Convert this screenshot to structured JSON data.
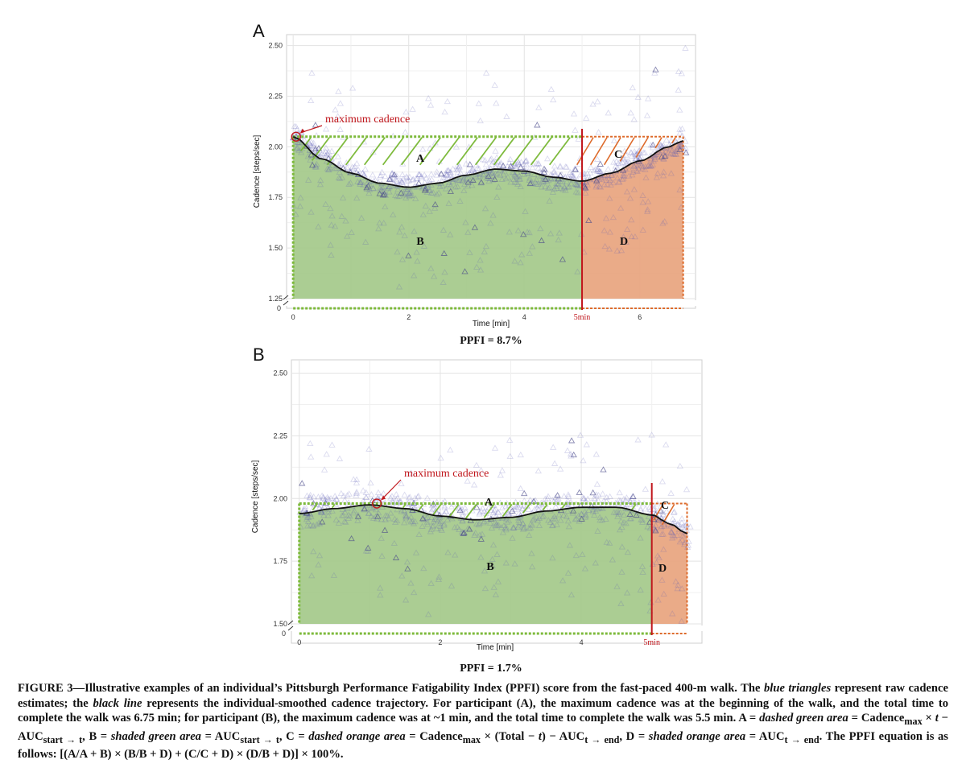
{
  "panels": [
    {
      "id": "A",
      "letter": "A",
      "y_axis_label": "Cadence [steps/sec]",
      "x_axis_label": "Time [min]",
      "y_ticks": [
        "2.50",
        "2.25",
        "2.00",
        "1.75",
        "1.50",
        "1.25"
      ],
      "y_tick_values": [
        2.5,
        2.25,
        2.0,
        1.75,
        1.5,
        1.25
      ],
      "y_zero_label": "0",
      "x_ticks": [
        "0",
        "2",
        "4",
        "6"
      ],
      "x_tick_values": [
        0,
        2,
        4,
        6
      ],
      "split_label": "5min",
      "annotation": "maximum cadence",
      "region_labels": [
        "A",
        "B",
        "C",
        "D"
      ],
      "ppfi": "PPFI = 8.7%"
    },
    {
      "id": "B",
      "letter": "B",
      "y_axis_label": "Cadence [steps/sec]",
      "x_axis_label": "Time [min]",
      "y_ticks": [
        "2.50",
        "2.25",
        "2.00",
        "1.75",
        "1.50"
      ],
      "y_tick_values": [
        2.5,
        2.25,
        2.0,
        1.75,
        1.5
      ],
      "y_zero_label": "0",
      "x_ticks": [
        "0",
        "2",
        "4"
      ],
      "x_tick_values": [
        0,
        2,
        4
      ],
      "split_label": "5min",
      "annotation": "maximum cadence",
      "region_labels": [
        "A",
        "B",
        "C",
        "D"
      ],
      "ppfi": "PPFI = 1.7%"
    }
  ],
  "chart_data": [
    {
      "type": "scatter",
      "panel": "A",
      "xlabel": "Time [min]",
      "ylabel": "Cadence [steps/sec]",
      "xlim": [
        -0.1,
        6.95
      ],
      "ylim": [
        1.25,
        2.55
      ],
      "split_time": 5.0,
      "total_time": 6.75,
      "max_cadence": 2.05,
      "max_cadence_time": 0.05,
      "smoothed_cadence": {
        "x": [
          0,
          0.5,
          1.0,
          1.5,
          2.0,
          2.5,
          3.0,
          3.5,
          4.0,
          4.5,
          5.0,
          5.5,
          6.0,
          6.5,
          6.75
        ],
        "y": [
          2.05,
          1.94,
          1.87,
          1.82,
          1.8,
          1.82,
          1.86,
          1.89,
          1.88,
          1.85,
          1.83,
          1.87,
          1.93,
          2.0,
          2.03
        ]
      },
      "series": [
        {
          "name": "blue triangles",
          "marker": "triangle",
          "color": "#5a5ab4"
        },
        {
          "name": "black line",
          "color": "#111111"
        }
      ],
      "colors": {
        "green_fill": "#a4c98a",
        "orange_fill": "#e8a47e",
        "green_dash": "#7dba3b",
        "orange_dash": "#dd6a2a",
        "split_line": "#c0161c"
      },
      "grid": true
    },
    {
      "type": "scatter",
      "panel": "B",
      "xlabel": "Time [min]",
      "ylabel": "Cadence [steps/sec]",
      "xlim": [
        -0.1,
        5.7
      ],
      "ylim": [
        1.5,
        2.55
      ],
      "split_time": 5.0,
      "total_time": 5.5,
      "max_cadence": 1.98,
      "max_cadence_time": 1.1,
      "smoothed_cadence": {
        "x": [
          0,
          0.5,
          1.0,
          1.5,
          2.0,
          2.5,
          3.0,
          3.5,
          4.0,
          4.5,
          5.0,
          5.25,
          5.5
        ],
        "y": [
          1.94,
          1.96,
          1.975,
          1.96,
          1.93,
          1.915,
          1.925,
          1.95,
          1.965,
          1.965,
          1.935,
          1.9,
          1.86
        ]
      },
      "series": [
        {
          "name": "blue triangles",
          "marker": "triangle",
          "color": "#5a5ab4"
        },
        {
          "name": "black line",
          "color": "#111111"
        }
      ],
      "colors": {
        "green_fill": "#a4c98a",
        "orange_fill": "#e8a47e",
        "green_dash": "#7dba3b",
        "orange_dash": "#dd6a2a",
        "split_line": "#c0161c"
      },
      "grid": true
    }
  ],
  "caption": {
    "fig_label": "FIGURE 3",
    "s1": "—Illustrative examples of an individual’s Pittsburgh Performance Fatigability Index (PPFI) score from the fast-paced 400-m walk. The ",
    "i1": "blue triangles",
    "s2": " represent raw cadence estimates; the ",
    "i2": "black line",
    "s3": " represents the individual-smoothed cadence trajectory. For participant (A), the maximum cadence was at the beginning of the walk, and the total time to complete the walk was 6.75 min; for participant (B), the maximum cadence was at ~1 min, and the total time to complete the walk was 5.5 min. A = ",
    "i3": "dashed green area",
    "s4": " = Cadence",
    "sub_max": "max",
    "s5": " × ",
    "i_t": "t",
    "s6": " − AUC",
    "sub_start_t": "start → t",
    "s7": ", B = ",
    "i4": "shaded green area",
    "s8": " = AUC",
    "sub_start_t2": "start → t",
    "s9": ", C = ",
    "i5": "dashed orange area",
    "s10": " = Cadence",
    "sub_max2": "max",
    "s11": " × (Total − ",
    "i_t2": "t",
    "s12": ") − AUC",
    "sub_t_end": "t → end",
    "s13": ", D = ",
    "i6": "shaded orange area",
    "s14": " = AUC",
    "sub_t_end2": "t → end",
    "s15": ". The PPFI equation is as follows: [(A/A + B) × (B/B + D) + (C/C + D) × (D/B + D)] × 100%."
  }
}
